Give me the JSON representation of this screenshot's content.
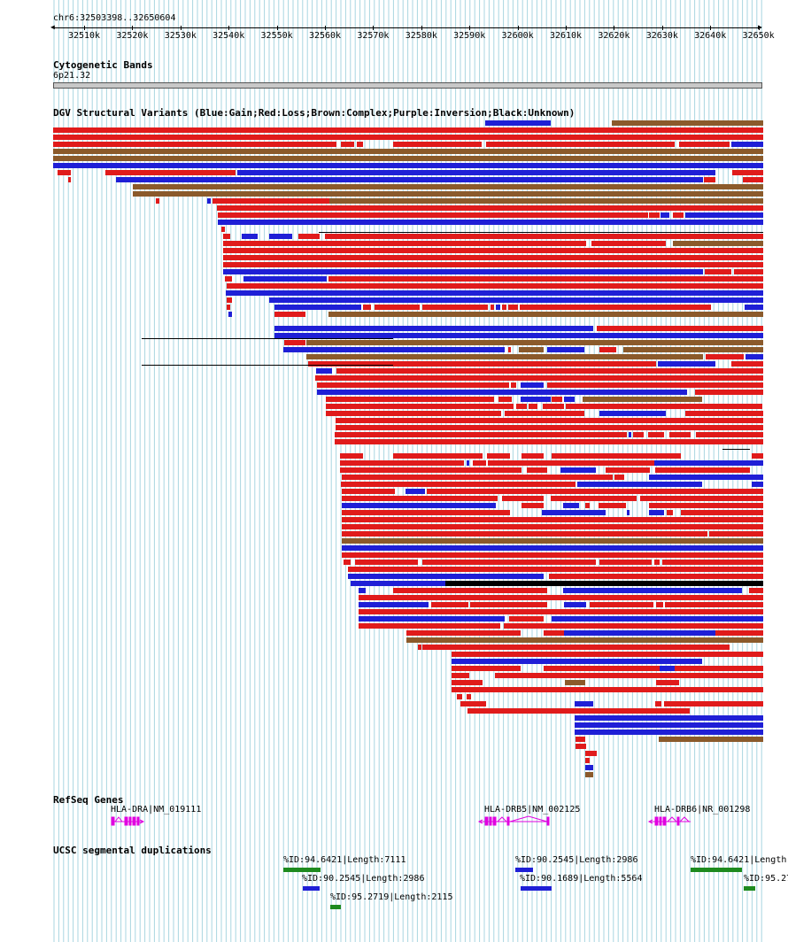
{
  "window": {
    "coordinate": "chr6:32503398..32650604"
  },
  "ruler": {
    "start": 32503398,
    "end": 32650604,
    "ticks": [
      "32510k",
      "32520k",
      "32530k",
      "32540k",
      "32550k",
      "32560k",
      "32570k",
      "32580k",
      "32590k",
      "32600k",
      "32610k",
      "32620k",
      "32630k",
      "32640k",
      "32650k"
    ]
  },
  "tracks": {
    "cytoband": {
      "title": "Cytogenetic Bands",
      "band": "6p21.32"
    },
    "dgv": {
      "title": "DGV Structural Variants (Blue:Gain;Red:Loss;Brown:Complex;Purple:Inversion;Black:Unknown)"
    },
    "refseq": {
      "title": "RefSeq Genes",
      "genes": [
        {
          "label": "HLA-DRA|NM_019111",
          "strand": "+"
        },
        {
          "label": "HLA-DRB5|NM_002125",
          "strand": "-"
        },
        {
          "label": "HLA-DRB6|NR_001298",
          "strand": "-"
        }
      ]
    },
    "segdup": {
      "title": "UCSC segmental duplications",
      "items": [
        {
          "label": "%ID:94.6421|Length:7111",
          "color": "green"
        },
        {
          "label": "%ID:90.2545|Length:2986",
          "color": "blue"
        },
        {
          "label": "%ID:95.2719|Length:2115",
          "color": "green"
        },
        {
          "label": "%ID:90.2545|Length:2986",
          "color": "blue"
        },
        {
          "label": "%ID:90.1689|Length:5564",
          "color": "blue"
        },
        {
          "label": "%ID:94.6421|Length",
          "color": "green"
        },
        {
          "label": "%ID:95.27",
          "color": "green"
        }
      ]
    }
  },
  "colors": {
    "gain": "#1f1fd6",
    "loss": "#e01b1b",
    "complex": "#8b5a2b",
    "unknown": "#000000",
    "gene": "#e000e0",
    "segdup_green": "#1e8a1e",
    "grid": "#a9d6e0"
  }
}
